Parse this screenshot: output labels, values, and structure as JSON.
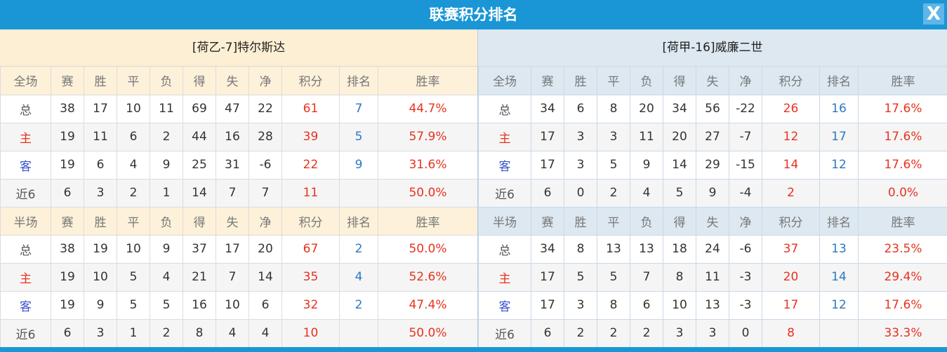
{
  "title": "联赛积分排名",
  "close_label": "X",
  "colors": {
    "accent": "#1a96d6",
    "points": "#e8321f",
    "rank": "#2b78c2"
  },
  "teams": [
    {
      "name": "[荷乙-7]特尔斯达",
      "sections": [
        {
          "header": [
            "全场",
            "赛",
            "胜",
            "平",
            "负",
            "得",
            "失",
            "净",
            "积分",
            "排名",
            "胜率"
          ],
          "rows": [
            [
              "总",
              "38",
              "17",
              "10",
              "11",
              "69",
              "47",
              "22",
              "61",
              "7",
              "44.7%"
            ],
            [
              "主",
              "19",
              "11",
              "6",
              "2",
              "44",
              "16",
              "28",
              "39",
              "5",
              "57.9%"
            ],
            [
              "客",
              "19",
              "6",
              "4",
              "9",
              "25",
              "31",
              "-6",
              "22",
              "9",
              "31.6%"
            ],
            [
              "近6",
              "6",
              "3",
              "2",
              "1",
              "14",
              "7",
              "7",
              "11",
              "",
              "50.0%"
            ]
          ]
        },
        {
          "header": [
            "半场",
            "赛",
            "胜",
            "平",
            "负",
            "得",
            "失",
            "净",
            "积分",
            "排名",
            "胜率"
          ],
          "rows": [
            [
              "总",
              "38",
              "19",
              "10",
              "9",
              "37",
              "17",
              "20",
              "67",
              "2",
              "50.0%"
            ],
            [
              "主",
              "19",
              "10",
              "5",
              "4",
              "21",
              "7",
              "14",
              "35",
              "4",
              "52.6%"
            ],
            [
              "客",
              "19",
              "9",
              "5",
              "5",
              "16",
              "10",
              "6",
              "32",
              "2",
              "47.4%"
            ],
            [
              "近6",
              "6",
              "3",
              "1",
              "2",
              "8",
              "4",
              "4",
              "10",
              "",
              "50.0%"
            ]
          ]
        }
      ]
    },
    {
      "name": "[荷甲-16]威廉二世",
      "sections": [
        {
          "header": [
            "全场",
            "赛",
            "胜",
            "平",
            "负",
            "得",
            "失",
            "净",
            "积分",
            "排名",
            "胜率"
          ],
          "rows": [
            [
              "总",
              "34",
              "6",
              "8",
              "20",
              "34",
              "56",
              "-22",
              "26",
              "16",
              "17.6%"
            ],
            [
              "主",
              "17",
              "3",
              "3",
              "11",
              "20",
              "27",
              "-7",
              "12",
              "17",
              "17.6%"
            ],
            [
              "客",
              "17",
              "3",
              "5",
              "9",
              "14",
              "29",
              "-15",
              "14",
              "12",
              "17.6%"
            ],
            [
              "近6",
              "6",
              "0",
              "2",
              "4",
              "5",
              "9",
              "-4",
              "2",
              "",
              "0.0%"
            ]
          ]
        },
        {
          "header": [
            "半场",
            "赛",
            "胜",
            "平",
            "负",
            "得",
            "失",
            "净",
            "积分",
            "排名",
            "胜率"
          ],
          "rows": [
            [
              "总",
              "34",
              "8",
              "13",
              "13",
              "18",
              "24",
              "-6",
              "37",
              "13",
              "23.5%"
            ],
            [
              "主",
              "17",
              "5",
              "5",
              "7",
              "8",
              "11",
              "-3",
              "20",
              "14",
              "29.4%"
            ],
            [
              "客",
              "17",
              "3",
              "8",
              "6",
              "10",
              "13",
              "-3",
              "17",
              "12",
              "17.6%"
            ],
            [
              "近6",
              "6",
              "2",
              "2",
              "2",
              "3",
              "3",
              "0",
              "8",
              "",
              "33.3%"
            ]
          ]
        }
      ]
    }
  ]
}
